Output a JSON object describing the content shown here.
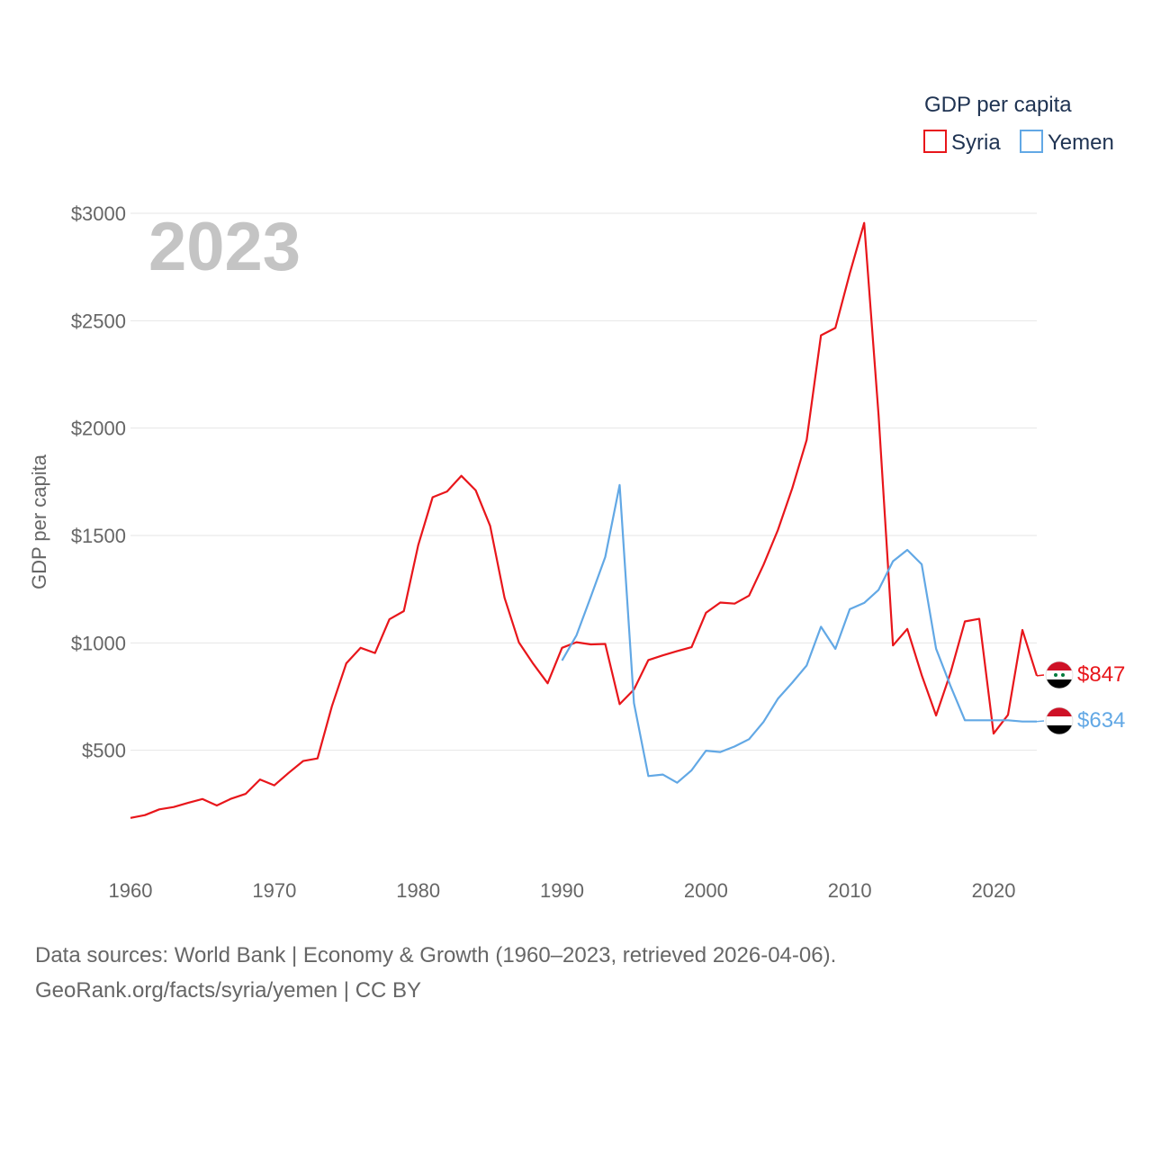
{
  "chart_data": {
    "type": "line",
    "year_label": "2023",
    "ylabel": "GDP per capita",
    "xlim": [
      1960,
      2023
    ],
    "ylim": [
      0,
      3000
    ],
    "x_ticks": [
      1960,
      1970,
      1980,
      1990,
      2000,
      2010,
      2020
    ],
    "x_tick_labels": [
      "1960",
      "1970",
      "1980",
      "1990",
      "2000",
      "2010",
      "2020"
    ],
    "y_ticks": [
      500,
      1000,
      1500,
      2000,
      2500,
      3000
    ],
    "y_tick_labels": [
      "$500",
      "$1000",
      "$1500",
      "$2000",
      "$2500",
      "$3000"
    ],
    "legend_title": "GDP per capita",
    "series": [
      {
        "name": "Syria",
        "color": "#e8161b",
        "start_year": 1960,
        "end_label": "$847",
        "flag": "syria-flag",
        "values": [
          185,
          198,
          225,
          236,
          255,
          273,
          243,
          275,
          297,
          364,
          337,
          395,
          450,
          462,
          705,
          905,
          977,
          953,
          1110,
          1148,
          1455,
          1678,
          1705,
          1778,
          1710,
          1545,
          1210,
          1002,
          902,
          812,
          977,
          1003,
          993,
          995,
          715,
          783,
          920,
          942,
          962,
          980,
          1140,
          1188,
          1183,
          1220,
          1363,
          1525,
          1720,
          1945,
          2432,
          2466,
          2720,
          2955,
          2060,
          988,
          1065,
          850,
          662,
          860,
          1100,
          1112,
          578,
          665,
          1060,
          847
        ]
      },
      {
        "name": "Yemen",
        "color": "#62a8e5",
        "start_year": 1990,
        "end_label": "$634",
        "flag": "yemen-flag",
        "values": [
          918,
          1035,
          1215,
          1400,
          1735,
          720,
          380,
          387,
          349,
          407,
          498,
          492,
          518,
          552,
          632,
          740,
          815,
          895,
          1075,
          972,
          1157,
          1186,
          1247,
          1380,
          1433,
          1366,
          973,
          800,
          640,
          640,
          640,
          640,
          634,
          634
        ]
      }
    ]
  },
  "footer": {
    "line1": "Data sources: World Bank | Economy & Growth (1960–2023, retrieved 2026-04-06).",
    "line2": "GeoRank.org/facts/syria/yemen | CC BY"
  }
}
